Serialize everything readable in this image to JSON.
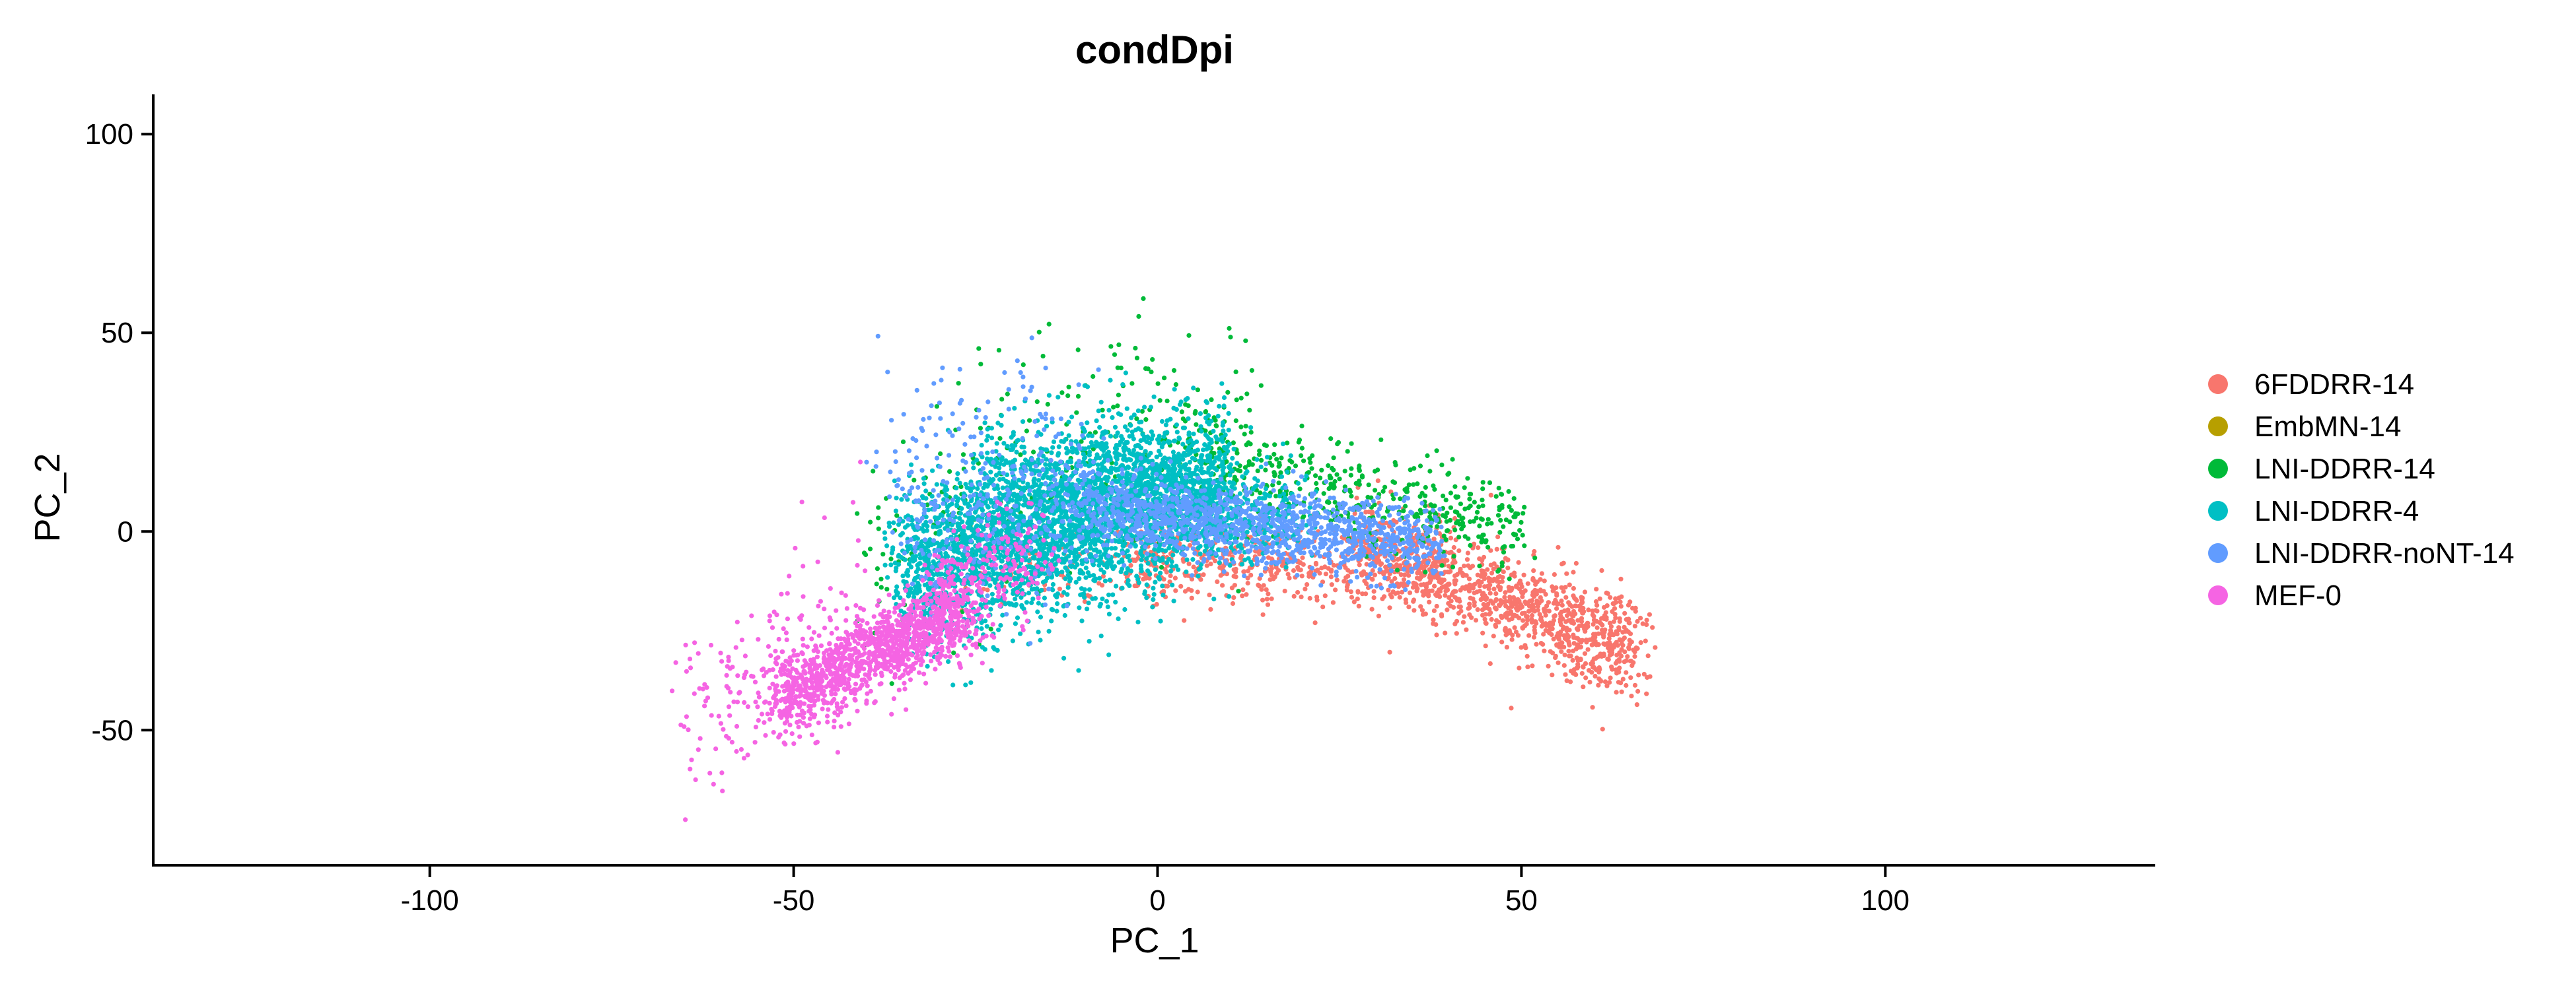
{
  "chart_data": {
    "type": "scatter",
    "title": "condDpi",
    "xlabel": "PC_1",
    "ylabel": "PC_2",
    "xlim": [
      -138,
      137
    ],
    "ylim": [
      -84,
      110
    ],
    "xticks": [
      -100,
      -50,
      0,
      50,
      100
    ],
    "yticks": [
      -50,
      0,
      50,
      100
    ],
    "grid": false,
    "legend_position": "right",
    "series": [
      {
        "name": "6FDDRR-14",
        "color": "#F8766D",
        "clusters": [
          {
            "n": 1100,
            "x_range": [
              28,
              66
            ],
            "y_center": [
              -3,
              -30
            ],
            "y_sd": 6
          },
          {
            "n": 420,
            "x_range": [
              -5,
              30
            ],
            "y_center": [
              -8,
              -8
            ],
            "y_sd": 5
          },
          {
            "n": 80,
            "x_range": [
              -25,
              -3
            ],
            "y_center": [
              -12,
              -8
            ],
            "y_sd": 4
          },
          {
            "n": 40,
            "x_range": [
              55,
              63
            ],
            "y_center": [
              -32,
              -38
            ],
            "y_sd": 2
          }
        ]
      },
      {
        "name": "EmbMN-14",
        "color": "#B79F00",
        "clusters": []
      },
      {
        "name": "LNI-DDRR-14",
        "color": "#00BA38",
        "clusters": [
          {
            "n": 460,
            "x_range": [
              3,
              50
            ],
            "y_center": [
              20,
              0
            ],
            "y_sd": 6
          },
          {
            "n": 220,
            "x_range": [
              -40,
              12
            ],
            "y_center": [
              -5,
              25
            ],
            "y_sd": 14
          },
          {
            "n": 40,
            "x_range": [
              -25,
              15
            ],
            "y_center": [
              35,
              42
            ],
            "y_sd": 8
          }
        ]
      },
      {
        "name": "LNI-DDRR-4",
        "color": "#00BFC4",
        "clusters": [
          {
            "n": 2700,
            "x_range": [
              -35,
              10
            ],
            "y_center": [
              -10,
              12
            ],
            "y_sd": 10
          },
          {
            "n": 700,
            "x_range": [
              -25,
              0
            ],
            "y_center": [
              8,
              14
            ],
            "y_sd": 9
          },
          {
            "n": 350,
            "x_range": [
              0,
              20
            ],
            "y_center": [
              10,
              3
            ],
            "y_sd": 6
          }
        ]
      },
      {
        "name": "LNI-DDRR-noNT-14",
        "color": "#619CFF",
        "clusters": [
          {
            "n": 1300,
            "x_range": [
              -10,
              38
            ],
            "y_center": [
              6,
              -3
            ],
            "y_sd": 5
          },
          {
            "n": 300,
            "x_range": [
              -35,
              -10
            ],
            "y_center": [
              -2,
              10
            ],
            "y_sd": 11
          },
          {
            "n": 60,
            "x_range": [
              -40,
              -15
            ],
            "y_center": [
              20,
              35
            ],
            "y_sd": 8
          }
        ]
      },
      {
        "name": "MEF-0",
        "color": "#F564E3",
        "clusters": [
          {
            "n": 1200,
            "x_range": [
              -52,
              -26
            ],
            "y_center": [
              -42,
              -20
            ],
            "y_sd": 5
          },
          {
            "n": 180,
            "x_range": [
              -65,
              -40
            ],
            "y_center": [
              -50,
              -20
            ],
            "y_sd": 12
          },
          {
            "n": 200,
            "x_range": [
              -32,
              -15
            ],
            "y_center": [
              -15,
              -5
            ],
            "y_sd": 7
          }
        ]
      }
    ]
  }
}
